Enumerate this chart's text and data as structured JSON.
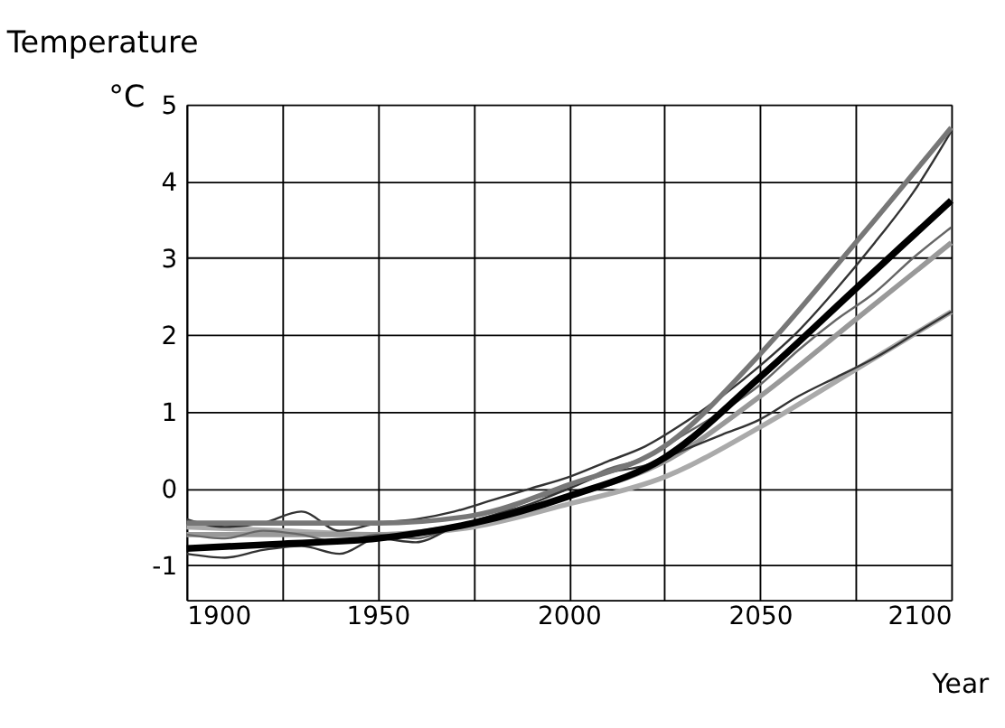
{
  "chart_data": {
    "type": "line",
    "title": "Temperature",
    "ylabel": "°C",
    "xlabel": "Year",
    "x": [
      1900,
      1925,
      1950,
      1975,
      2000,
      2025,
      2050,
      2075,
      2100
    ],
    "xlim": [
      1900,
      2100
    ],
    "xticks": [
      1900,
      {
        "value": 1925,
        "label": null
      },
      1950,
      {
        "value": 1975,
        "label": null
      },
      2000,
      {
        "value": 2025,
        "label": null
      },
      2050,
      {
        "value": 2075,
        "label": null
      },
      2100
    ],
    "ylim": [
      -1.45,
      5
    ],
    "yticks": [
      -1,
      0,
      1,
      2,
      3,
      4,
      5
    ],
    "grid": true,
    "marker": "none",
    "line_style": "solid",
    "series": [
      {
        "color": "#aaaaaa",
        "values": [
          -0.5,
          -0.55,
          -0.6,
          -0.5,
          -0.2,
          0.15,
          0.8,
          1.55,
          2.3
        ]
      },
      {
        "color": "#999999",
        "values": [
          -0.6,
          -0.6,
          -0.6,
          -0.45,
          -0.1,
          0.35,
          1.2,
          2.2,
          3.2
        ]
      },
      {
        "color": "#666666",
        "x": [
          1900,
          1910,
          1920,
          1930,
          1940,
          1950,
          1960,
          1970,
          1980,
          1990,
          2000,
          2010,
          2020,
          2030,
          2040,
          2050,
          2060,
          2070,
          2080,
          2090,
          2100
        ],
        "values": [
          -0.6,
          -0.65,
          -0.55,
          -0.6,
          -0.7,
          -0.6,
          -0.65,
          -0.5,
          -0.35,
          -0.15,
          0.0,
          0.25,
          0.4,
          0.7,
          1.0,
          1.35,
          1.8,
          2.2,
          2.55,
          3.0,
          3.4
        ]
      },
      {
        "color": "#333333",
        "x": [
          1900,
          1910,
          1920,
          1930,
          1940,
          1950,
          1960,
          1970,
          1980,
          1990,
          2000,
          2010,
          2020,
          2030,
          2040,
          2050,
          2060,
          2070,
          2080,
          2090,
          2100
        ],
        "values": [
          -0.85,
          -0.9,
          -0.8,
          -0.75,
          -0.85,
          -0.65,
          -0.7,
          -0.5,
          -0.35,
          -0.2,
          0.0,
          0.2,
          0.3,
          0.5,
          0.7,
          0.9,
          1.2,
          1.45,
          1.7,
          2.0,
          2.3
        ]
      },
      {
        "color": "#333333",
        "x": [
          1900,
          1910,
          1920,
          1930,
          1940,
          1950,
          1960,
          1970,
          1980,
          1990,
          2000,
          2010,
          2020,
          2030,
          2040,
          2050,
          2060,
          2070,
          2080,
          2090,
          2100
        ],
        "values": [
          -0.4,
          -0.5,
          -0.45,
          -0.3,
          -0.55,
          -0.45,
          -0.4,
          -0.3,
          -0.15,
          0.0,
          0.15,
          0.35,
          0.55,
          0.85,
          1.2,
          1.6,
          2.05,
          2.6,
          3.2,
          3.85,
          4.65
        ]
      },
      {
        "color": "#777777",
        "values": [
          -0.45,
          -0.45,
          -0.45,
          -0.35,
          0.05,
          0.55,
          1.75,
          3.2,
          4.7
        ]
      },
      {
        "color": "#000000",
        "values": [
          -0.78,
          -0.72,
          -0.65,
          -0.45,
          -0.1,
          0.4,
          1.45,
          2.6,
          3.75
        ]
      }
    ]
  }
}
